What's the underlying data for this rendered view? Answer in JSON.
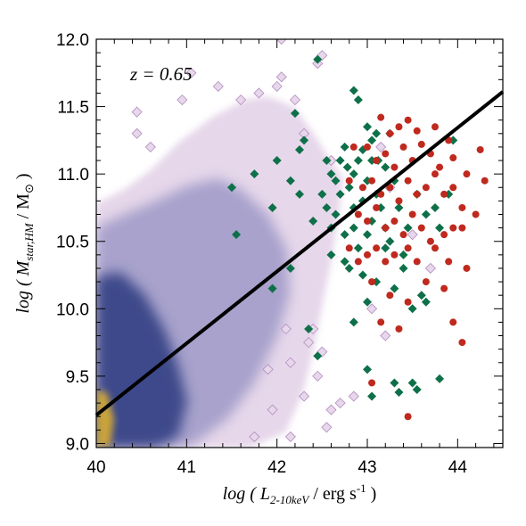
{
  "chart_data": {
    "type": "scatter",
    "annotation": "z = 0.65",
    "xlabel": {
      "prefix": "log ( ",
      "var": "L",
      "sub": "2-10keV",
      "unit": " / erg s",
      "sup": "-1",
      "suffix": " )"
    },
    "ylabel": {
      "prefix": "log ( ",
      "var": "M",
      "sub": "star,HM",
      "unit": " / M",
      "unit_sub": "⊙",
      "suffix": " )"
    },
    "xlim": [
      40.0,
      44.5
    ],
    "ylim": [
      8.97,
      12.0
    ],
    "xticks": [
      "40",
      "41",
      "42",
      "43",
      "44"
    ],
    "yticks": [
      "9.0",
      "9.5",
      "10.0",
      "10.5",
      "11.0",
      "11.5",
      "12.0"
    ],
    "colors": {
      "density_light": "#e6d7ea",
      "density_mid": "#a8a2cc",
      "density_dark": "#3c4a8a",
      "density_peak": "#c9a33a",
      "green": "#0e7049",
      "red": "#c0291e",
      "fit": "#000000"
    },
    "fit_line": {
      "x": [
        40.0,
        44.5
      ],
      "y": [
        9.21,
        11.61
      ]
    },
    "density_outliers": [
      [
        40.45,
        11.46
      ],
      [
        40.45,
        11.3
      ],
      [
        40.6,
        11.2
      ],
      [
        40.95,
        11.55
      ],
      [
        41.05,
        11.75
      ],
      [
        41.35,
        11.65
      ],
      [
        41.6,
        11.55
      ],
      [
        41.8,
        11.6
      ],
      [
        42.0,
        11.65
      ],
      [
        42.05,
        11.72
      ],
      [
        42.2,
        11.55
      ],
      [
        42.45,
        11.82
      ],
      [
        42.5,
        11.88
      ],
      [
        42.3,
        11.3
      ],
      [
        42.05,
        12.0
      ],
      [
        42.6,
        11.1
      ],
      [
        43.15,
        11.2
      ],
      [
        43.25,
        10.9
      ],
      [
        43.5,
        10.55
      ],
      [
        43.7,
        10.3
      ],
      [
        43.05,
        10.0
      ],
      [
        43.2,
        9.8
      ],
      [
        42.85,
        9.35
      ],
      [
        42.7,
        9.3
      ],
      [
        42.6,
        9.25
      ],
      [
        42.55,
        9.12
      ],
      [
        42.15,
        9.05
      ],
      [
        41.95,
        9.25
      ],
      [
        42.3,
        9.35
      ],
      [
        42.45,
        9.5
      ],
      [
        42.15,
        9.6
      ],
      [
        42.1,
        9.85
      ],
      [
        42.35,
        9.75
      ],
      [
        42.5,
        9.68
      ],
      [
        42.4,
        9.85
      ],
      [
        41.75,
        9.05
      ],
      [
        41.9,
        9.55
      ]
    ],
    "series": [
      {
        "name": "",
        "marker": "diamond",
        "color": "#0e7049",
        "points": [
          [
            42.45,
            11.85
          ],
          [
            42.2,
            11.45
          ],
          [
            42.25,
            11.18
          ],
          [
            42.3,
            11.25
          ],
          [
            42.75,
            11.2
          ],
          [
            42.85,
            11.62
          ],
          [
            42.9,
            11.55
          ],
          [
            43.0,
            11.35
          ],
          [
            43.05,
            11.25
          ],
          [
            43.1,
            11.3
          ],
          [
            43.25,
            11.3
          ],
          [
            42.55,
            11.1
          ],
          [
            42.6,
            11.0
          ],
          [
            42.65,
            10.95
          ],
          [
            42.7,
            11.1
          ],
          [
            42.78,
            11.05
          ],
          [
            42.85,
            11.0
          ],
          [
            42.9,
            11.1
          ],
          [
            42.95,
            11.18
          ],
          [
            43.05,
            11.1
          ],
          [
            43.12,
            11.1
          ],
          [
            43.2,
            11.05
          ],
          [
            42.5,
            10.85
          ],
          [
            42.55,
            10.75
          ],
          [
            42.65,
            10.7
          ],
          [
            42.7,
            10.85
          ],
          [
            42.8,
            10.9
          ],
          [
            42.85,
            10.75
          ],
          [
            42.95,
            10.8
          ],
          [
            43.0,
            10.95
          ],
          [
            43.1,
            10.85
          ],
          [
            43.15,
            10.75
          ],
          [
            42.4,
            10.65
          ],
          [
            42.6,
            10.6
          ],
          [
            42.75,
            10.55
          ],
          [
            42.85,
            10.6
          ],
          [
            42.9,
            10.45
          ],
          [
            43.0,
            10.55
          ],
          [
            43.05,
            10.65
          ],
          [
            43.2,
            10.6
          ],
          [
            43.25,
            10.5
          ],
          [
            42.8,
            10.3
          ],
          [
            42.95,
            10.25
          ],
          [
            43.1,
            10.2
          ],
          [
            43.3,
            10.15
          ],
          [
            43.5,
            10.0
          ],
          [
            43.65,
            10.05
          ],
          [
            43.4,
            10.3
          ],
          [
            43.45,
            10.6
          ],
          [
            43.55,
            10.85
          ],
          [
            43.65,
            10.7
          ],
          [
            43.75,
            10.75
          ],
          [
            43.8,
            10.6
          ],
          [
            43.35,
            10.75
          ],
          [
            43.9,
            10.85
          ],
          [
            43.95,
            11.25
          ],
          [
            41.75,
            11.0
          ],
          [
            41.5,
            10.9
          ],
          [
            42.0,
            11.1
          ],
          [
            42.15,
            10.95
          ],
          [
            42.25,
            10.85
          ],
          [
            41.95,
            10.75
          ],
          [
            41.55,
            10.55
          ],
          [
            42.15,
            10.3
          ],
          [
            41.95,
            10.15
          ],
          [
            42.35,
            9.85
          ],
          [
            42.85,
            9.9
          ],
          [
            43.0,
            10.05
          ],
          [
            42.45,
            9.65
          ],
          [
            43.0,
            9.55
          ],
          [
            43.3,
            9.45
          ],
          [
            43.35,
            9.38
          ],
          [
            43.05,
            9.35
          ],
          [
            43.55,
            9.4
          ],
          [
            43.5,
            9.45
          ],
          [
            43.8,
            9.48
          ],
          [
            43.2,
            10.45
          ],
          [
            43.4,
            10.4
          ],
          [
            42.6,
            10.4
          ],
          [
            42.75,
            10.35
          ],
          [
            43.6,
            10.1
          ],
          [
            43.3,
            10.95
          ]
        ]
      },
      {
        "name": "",
        "marker": "circle",
        "color": "#c0291e",
        "points": [
          [
            43.15,
            11.42
          ],
          [
            43.25,
            11.3
          ],
          [
            43.35,
            11.35
          ],
          [
            43.45,
            11.4
          ],
          [
            43.55,
            11.32
          ],
          [
            43.75,
            11.35
          ],
          [
            43.9,
            11.25
          ],
          [
            42.85,
            11.2
          ],
          [
            43.0,
            11.2
          ],
          [
            43.1,
            11.1
          ],
          [
            43.2,
            11.15
          ],
          [
            43.3,
            11.05
          ],
          [
            43.4,
            11.2
          ],
          [
            43.5,
            11.1
          ],
          [
            43.6,
            11.22
          ],
          [
            43.7,
            11.15
          ],
          [
            43.8,
            11.05
          ],
          [
            43.95,
            11.12
          ],
          [
            44.1,
            11.0
          ],
          [
            44.25,
            11.18
          ],
          [
            42.8,
            10.95
          ],
          [
            42.95,
            10.9
          ],
          [
            43.05,
            10.95
          ],
          [
            43.15,
            10.85
          ],
          [
            43.25,
            10.9
          ],
          [
            43.35,
            10.8
          ],
          [
            43.45,
            10.95
          ],
          [
            43.55,
            10.85
          ],
          [
            43.65,
            10.9
          ],
          [
            43.75,
            11.0
          ],
          [
            43.85,
            10.85
          ],
          [
            43.95,
            10.9
          ],
          [
            44.05,
            10.75
          ],
          [
            44.3,
            10.95
          ],
          [
            42.9,
            10.7
          ],
          [
            43.0,
            10.65
          ],
          [
            43.1,
            10.75
          ],
          [
            43.2,
            10.6
          ],
          [
            43.3,
            10.65
          ],
          [
            43.4,
            10.55
          ],
          [
            43.5,
            10.7
          ],
          [
            43.6,
            10.6
          ],
          [
            43.7,
            10.5
          ],
          [
            43.85,
            10.55
          ],
          [
            43.95,
            10.6
          ],
          [
            44.05,
            10.6
          ],
          [
            44.2,
            10.7
          ],
          [
            42.8,
            10.45
          ],
          [
            42.9,
            10.35
          ],
          [
            43.0,
            10.4
          ],
          [
            43.1,
            10.45
          ],
          [
            43.2,
            10.35
          ],
          [
            43.3,
            10.4
          ],
          [
            43.45,
            10.45
          ],
          [
            43.55,
            10.35
          ],
          [
            43.75,
            10.45
          ],
          [
            43.9,
            10.35
          ],
          [
            44.1,
            10.3
          ],
          [
            43.05,
            10.2
          ],
          [
            43.25,
            10.1
          ],
          [
            43.45,
            10.05
          ],
          [
            43.65,
            10.2
          ],
          [
            43.85,
            10.15
          ],
          [
            44.05,
            9.75
          ],
          [
            43.15,
            9.9
          ],
          [
            43.35,
            9.85
          ],
          [
            43.05,
            9.45
          ],
          [
            43.45,
            9.2
          ],
          [
            43.95,
            9.9
          ]
        ]
      }
    ]
  }
}
